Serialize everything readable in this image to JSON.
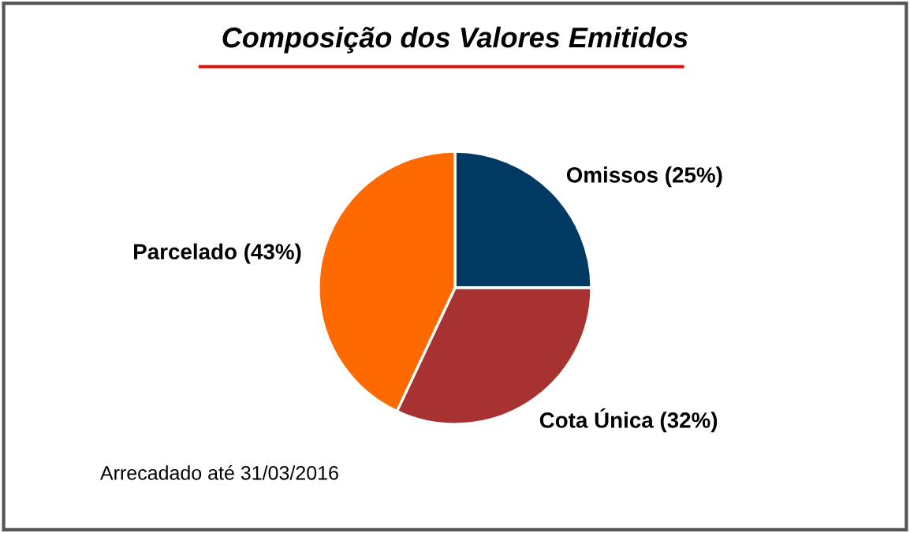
{
  "chart_data": {
    "type": "pie",
    "title": "Composição dos Valores Emitidos",
    "categories": [
      "Omissos (25%)",
      "Cota Única (32%)",
      "Parcelado (43%)"
    ],
    "values": [
      25,
      32,
      43
    ],
    "colors": [
      "#003a63",
      "#a83232",
      "#ff6a00"
    ],
    "annotations": [
      "Arrecadado até 31/03/2016"
    ]
  }
}
